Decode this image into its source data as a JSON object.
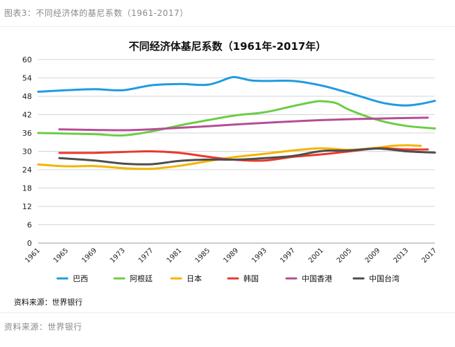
{
  "figure_caption": "图表3：不同经济体的基尼系数（1961-2017）",
  "inner_source": "资料来源：世界银行",
  "footer_source": "资料来源：世界银行",
  "chart_data": {
    "type": "line",
    "title": "不同经济体基尼系数（1961年-2017年）",
    "xlabel": "",
    "ylabel": "",
    "xlim": [
      1961,
      2017
    ],
    "ylim": [
      0,
      60
    ],
    "x_ticks": [
      "1961",
      "1965",
      "1969",
      "1973",
      "1977",
      "1981",
      "1985",
      "1989",
      "1993",
      "1997",
      "2001",
      "2005",
      "2009",
      "2013",
      "2017"
    ],
    "y_ticks": [
      "0",
      "6",
      "12",
      "18",
      "24",
      "30",
      "36",
      "42",
      "48",
      "54",
      "60"
    ],
    "grid": "horizontal",
    "legend_position": "bottom",
    "series": [
      {
        "name": "巴西",
        "color": "#1f9be0",
        "points": [
          [
            1961,
            49.5
          ],
          [
            1965,
            50.0
          ],
          [
            1969,
            50.3
          ],
          [
            1973,
            50.0
          ],
          [
            1977,
            51.6
          ],
          [
            1981,
            52.0
          ],
          [
            1985,
            51.8
          ],
          [
            1988,
            54.0
          ],
          [
            1989,
            54.2
          ],
          [
            1991,
            53.2
          ],
          [
            1993,
            53.0
          ],
          [
            1997,
            53.0
          ],
          [
            2001,
            51.5
          ],
          [
            2005,
            49.0
          ],
          [
            2009,
            46.2
          ],
          [
            2011,
            45.3
          ],
          [
            2013,
            45.0
          ],
          [
            2015,
            45.5
          ],
          [
            2017,
            46.5
          ]
        ]
      },
      {
        "name": "阿根廷",
        "color": "#6ccc45",
        "points": [
          [
            1961,
            36.0
          ],
          [
            1965,
            35.8
          ],
          [
            1969,
            35.6
          ],
          [
            1973,
            35.2
          ],
          [
            1977,
            36.5
          ],
          [
            1981,
            38.5
          ],
          [
            1985,
            40.2
          ],
          [
            1989,
            41.8
          ],
          [
            1993,
            42.8
          ],
          [
            1997,
            44.8
          ],
          [
            2000,
            46.2
          ],
          [
            2001,
            46.4
          ],
          [
            2003,
            45.8
          ],
          [
            2005,
            43.5
          ],
          [
            2009,
            40.2
          ],
          [
            2013,
            38.3
          ],
          [
            2017,
            37.5
          ]
        ]
      },
      {
        "name": "日本",
        "color": "#f4b400",
        "points": [
          [
            1961,
            25.7
          ],
          [
            1965,
            25.1
          ],
          [
            1969,
            25.2
          ],
          [
            1973,
            24.5
          ],
          [
            1977,
            24.3
          ],
          [
            1981,
            25.3
          ],
          [
            1985,
            26.8
          ],
          [
            1989,
            28.2
          ],
          [
            1993,
            29.2
          ],
          [
            1997,
            30.3
          ],
          [
            2001,
            31.0
          ],
          [
            2005,
            30.5
          ],
          [
            2009,
            31.2
          ],
          [
            2011,
            31.8
          ],
          [
            2013,
            32.0
          ],
          [
            2015,
            31.8
          ]
        ]
      },
      {
        "name": "韩国",
        "color": "#e8392c",
        "points": [
          [
            1964,
            29.5
          ],
          [
            1969,
            29.5
          ],
          [
            1973,
            29.8
          ],
          [
            1977,
            30.0
          ],
          [
            1981,
            29.5
          ],
          [
            1985,
            28.2
          ],
          [
            1989,
            27.2
          ],
          [
            1993,
            27.0
          ],
          [
            1997,
            28.2
          ],
          [
            2001,
            29.0
          ],
          [
            2005,
            30.0
          ],
          [
            2009,
            31.0
          ],
          [
            2013,
            30.6
          ],
          [
            2016,
            30.6
          ]
        ]
      },
      {
        "name": "中国香港",
        "color": "#b54d96",
        "points": [
          [
            1964,
            37.2
          ],
          [
            1969,
            37.0
          ],
          [
            1973,
            36.9
          ],
          [
            1977,
            37.2
          ],
          [
            1981,
            37.7
          ],
          [
            1985,
            38.2
          ],
          [
            1989,
            38.8
          ],
          [
            1993,
            39.3
          ],
          [
            1997,
            39.8
          ],
          [
            2001,
            40.2
          ],
          [
            2005,
            40.5
          ],
          [
            2009,
            40.7
          ],
          [
            2013,
            40.9
          ],
          [
            2016,
            41.0
          ]
        ]
      },
      {
        "name": "中国台湾",
        "color": "#4d4d4d",
        "points": [
          [
            1964,
            27.8
          ],
          [
            1969,
            27.0
          ],
          [
            1973,
            26.0
          ],
          [
            1977,
            25.8
          ],
          [
            1981,
            26.9
          ],
          [
            1985,
            27.3
          ],
          [
            1989,
            27.3
          ],
          [
            1993,
            27.8
          ],
          [
            1997,
            28.5
          ],
          [
            2001,
            30.1
          ],
          [
            2005,
            30.3
          ],
          [
            2009,
            30.9
          ],
          [
            2013,
            30.0
          ],
          [
            2017,
            29.6
          ]
        ]
      }
    ]
  }
}
